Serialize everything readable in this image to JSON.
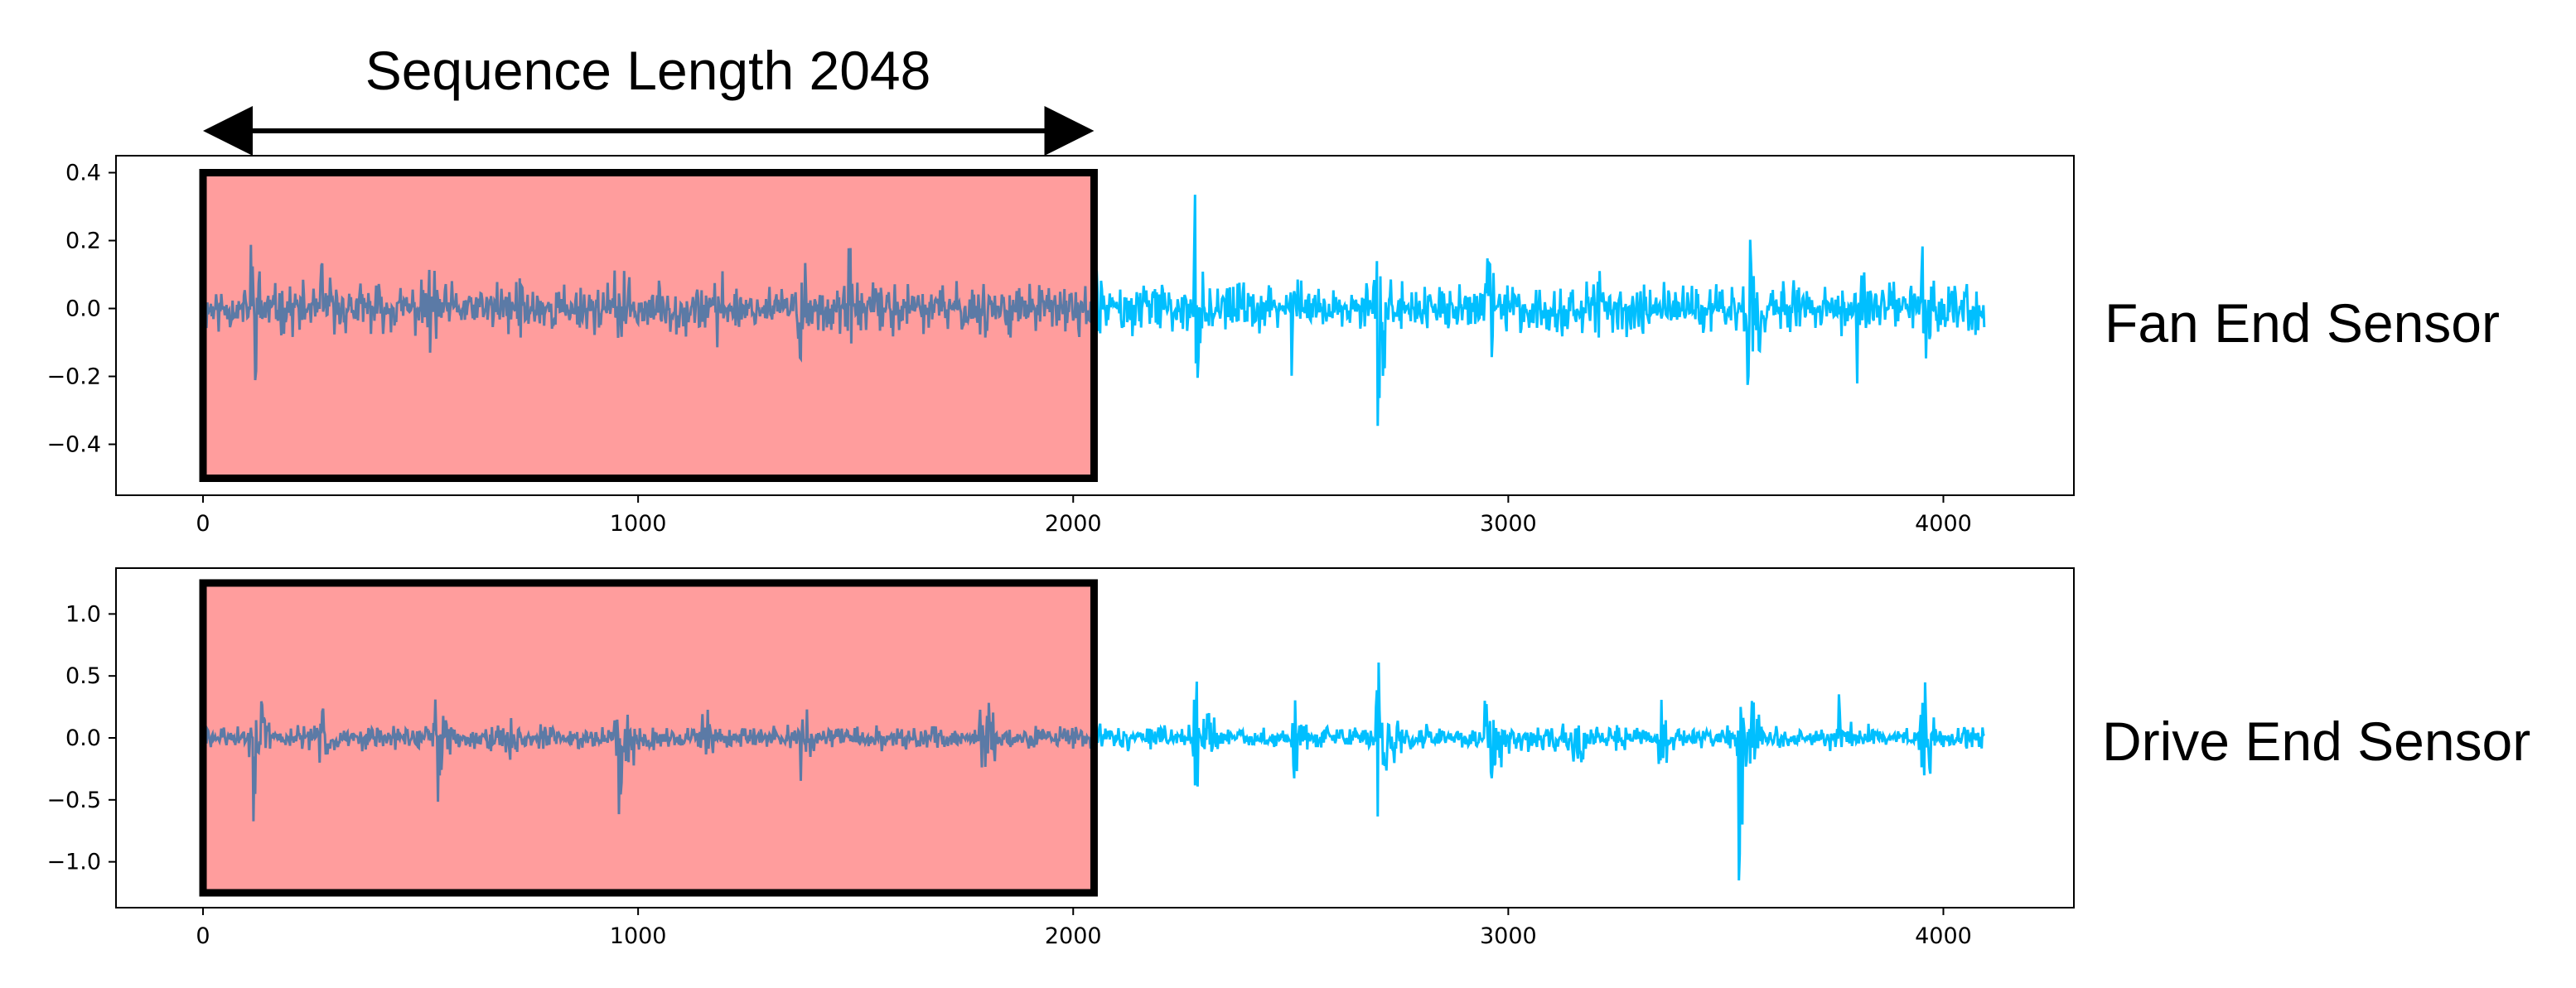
{
  "annotation": {
    "label": "Sequence Length 2048",
    "from_x": 0,
    "to_x": 2048
  },
  "colors": {
    "signal": "#00bfff",
    "window_fill": "#ff9d9d",
    "window_signal": "#5b7aa6",
    "window_border": "#000000"
  },
  "chart_data": [
    {
      "type": "line",
      "title": "",
      "side_label": "Fan End Sensor",
      "xlabel": "",
      "ylabel": "",
      "x_range": [
        0,
        4095
      ],
      "xlim": [
        -200,
        4300
      ],
      "ylim": [
        -0.55,
        0.45
      ],
      "x_ticks": [
        0,
        1000,
        2000,
        3000,
        4000
      ],
      "x_tick_labels": [
        "0",
        "1000",
        "2000",
        "3000",
        "4000"
      ],
      "y_ticks": [
        0.4,
        0.2,
        0.0,
        -0.2,
        -0.4
      ],
      "y_tick_labels": [
        "0.4",
        "0.2",
        "0.0",
        "−0.2",
        "−0.4"
      ],
      "highlight_window": {
        "x_start": 0,
        "x_end": 2048,
        "y_top": 0.4,
        "y_bottom": -0.5
      },
      "signal_profile": {
        "baseline_amplitude": 0.09,
        "noise_seed": 11,
        "bursts": [
          {
            "x": 110,
            "amplitude": 0.35
          },
          {
            "x": 270,
            "amplitude": 0.26
          },
          {
            "x": 520,
            "amplitude": 0.3
          },
          {
            "x": 720,
            "amplitude": 0.24
          },
          {
            "x": 950,
            "amplitude": 0.3
          },
          {
            "x": 1180,
            "amplitude": 0.22
          },
          {
            "x": 1370,
            "amplitude": 0.32
          },
          {
            "x": 1480,
            "amplitude": 0.24
          },
          {
            "x": 1790,
            "amplitude": 0.26
          },
          {
            "x": 2050,
            "amplitude": 0.22
          },
          {
            "x": 2280,
            "amplitude": 0.4
          },
          {
            "x": 2500,
            "amplitude": 0.26
          },
          {
            "x": 2700,
            "amplitude": 0.36
          },
          {
            "x": 2950,
            "amplitude": 0.32
          },
          {
            "x": 3200,
            "amplitude": 0.24
          },
          {
            "x": 3550,
            "amplitude": 0.42
          },
          {
            "x": 3800,
            "amplitude": 0.24
          },
          {
            "x": 3950,
            "amplitude": 0.42
          }
        ]
      }
    },
    {
      "type": "line",
      "title": "",
      "side_label": "Drive End Sensor",
      "xlabel": "",
      "ylabel": "",
      "x_range": [
        0,
        4095
      ],
      "xlim": [
        -200,
        4300
      ],
      "ylim": [
        -1.37,
        1.37
      ],
      "x_ticks": [
        0,
        1000,
        2000,
        3000,
        4000
      ],
      "x_tick_labels": [
        "0",
        "1000",
        "2000",
        "3000",
        "4000"
      ],
      "y_ticks": [
        1.0,
        0.5,
        0.0,
        -0.5,
        -1.0
      ],
      "y_tick_labels": [
        "1.0",
        "0.5",
        "0.0",
        "−0.5",
        "−1.0"
      ],
      "highlight_window": {
        "x_start": 0,
        "x_end": 2048,
        "y_top": 1.25,
        "y_bottom": -1.25
      },
      "signal_profile": {
        "baseline_amplitude": 0.12,
        "noise_seed": 29,
        "bursts": [
          {
            "x": 110,
            "amplitude": 1.0
          },
          {
            "x": 270,
            "amplitude": 0.45
          },
          {
            "x": 530,
            "amplitude": 0.8
          },
          {
            "x": 700,
            "amplitude": 0.4
          },
          {
            "x": 950,
            "amplitude": 0.95
          },
          {
            "x": 1150,
            "amplitude": 0.4
          },
          {
            "x": 1370,
            "amplitude": 0.6
          },
          {
            "x": 1790,
            "amplitude": 0.8
          },
          {
            "x": 2050,
            "amplitude": 0.3
          },
          {
            "x": 2280,
            "amplitude": 1.0
          },
          {
            "x": 2500,
            "amplitude": 0.55
          },
          {
            "x": 2700,
            "amplitude": 1.2
          },
          {
            "x": 2950,
            "amplitude": 0.95
          },
          {
            "x": 3150,
            "amplitude": 0.45
          },
          {
            "x": 3350,
            "amplitude": 0.45
          },
          {
            "x": 3530,
            "amplitude": 1.2
          },
          {
            "x": 3760,
            "amplitude": 0.45
          },
          {
            "x": 3950,
            "amplitude": 0.9
          }
        ]
      }
    }
  ]
}
